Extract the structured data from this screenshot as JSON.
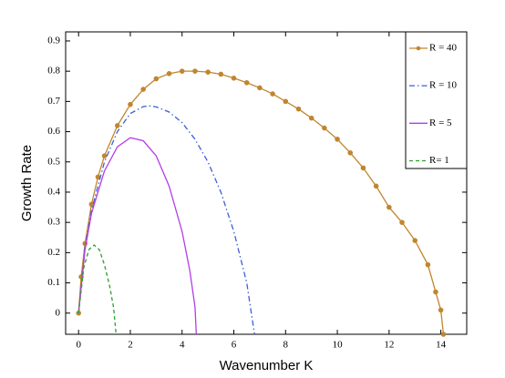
{
  "chart_data": {
    "type": "line",
    "xlabel": "Wavenumber K",
    "ylabel": "Growth Rate",
    "xlim": [
      -0.5,
      15
    ],
    "ylim": [
      -0.07,
      0.93
    ],
    "xticks": [
      0,
      2,
      4,
      6,
      8,
      10,
      12,
      14
    ],
    "yticks": [
      0,
      0.1,
      0.2,
      0.3,
      0.4,
      0.5,
      0.6,
      0.7,
      0.8,
      0.9
    ],
    "legend": "top-right",
    "series": [
      {
        "name": "R = 40",
        "color": "#c0862f",
        "dash": "solid",
        "marker": "circle",
        "x": [
          0,
          0.1,
          0.25,
          0.5,
          0.75,
          1,
          1.5,
          2,
          2.5,
          3,
          3.5,
          4,
          4.5,
          5,
          5.5,
          6,
          6.5,
          7,
          7.5,
          8,
          8.5,
          9,
          9.5,
          10,
          10.5,
          11,
          11.5,
          12,
          12.5,
          13,
          13.5,
          13.8,
          14,
          14.1
        ],
        "values": [
          0,
          0.12,
          0.23,
          0.36,
          0.45,
          0.52,
          0.62,
          0.69,
          0.74,
          0.775,
          0.792,
          0.8,
          0.8,
          0.797,
          0.79,
          0.777,
          0.762,
          0.745,
          0.725,
          0.7,
          0.675,
          0.645,
          0.612,
          0.575,
          0.53,
          0.48,
          0.42,
          0.35,
          0.3,
          0.24,
          0.16,
          0.07,
          0.01,
          -0.07
        ]
      },
      {
        "name": "R = 10",
        "color": "#3a5fd9",
        "dash": "dashdot",
        "marker": "none",
        "x": [
          0,
          0.25,
          0.5,
          1,
          1.5,
          2,
          2.5,
          2.75,
          3,
          3.5,
          4,
          4.5,
          5,
          5.5,
          6,
          6.5,
          6.8
        ],
        "values": [
          0,
          0.22,
          0.34,
          0.5,
          0.6,
          0.66,
          0.683,
          0.685,
          0.682,
          0.665,
          0.63,
          0.575,
          0.5,
          0.4,
          0.27,
          0.1,
          -0.07
        ]
      },
      {
        "name": "R = 5",
        "color": "#b23ee6",
        "dash": "solid",
        "marker": "none",
        "x": [
          0,
          0.25,
          0.5,
          1,
          1.5,
          2,
          2.5,
          3,
          3.5,
          4,
          4.3,
          4.5,
          4.55
        ],
        "values": [
          0,
          0.21,
          0.33,
          0.47,
          0.55,
          0.58,
          0.57,
          0.52,
          0.42,
          0.27,
          0.14,
          0.02,
          -0.07
        ]
      },
      {
        "name": "R= 1",
        "color": "#2ca02c",
        "dash": "dashed",
        "marker": "none",
        "x": [
          0,
          0.2,
          0.4,
          0.6,
          0.8,
          1,
          1.2,
          1.35,
          1.45
        ],
        "values": [
          0,
          0.15,
          0.21,
          0.225,
          0.21,
          0.16,
          0.09,
          0.02,
          -0.07
        ]
      }
    ]
  }
}
